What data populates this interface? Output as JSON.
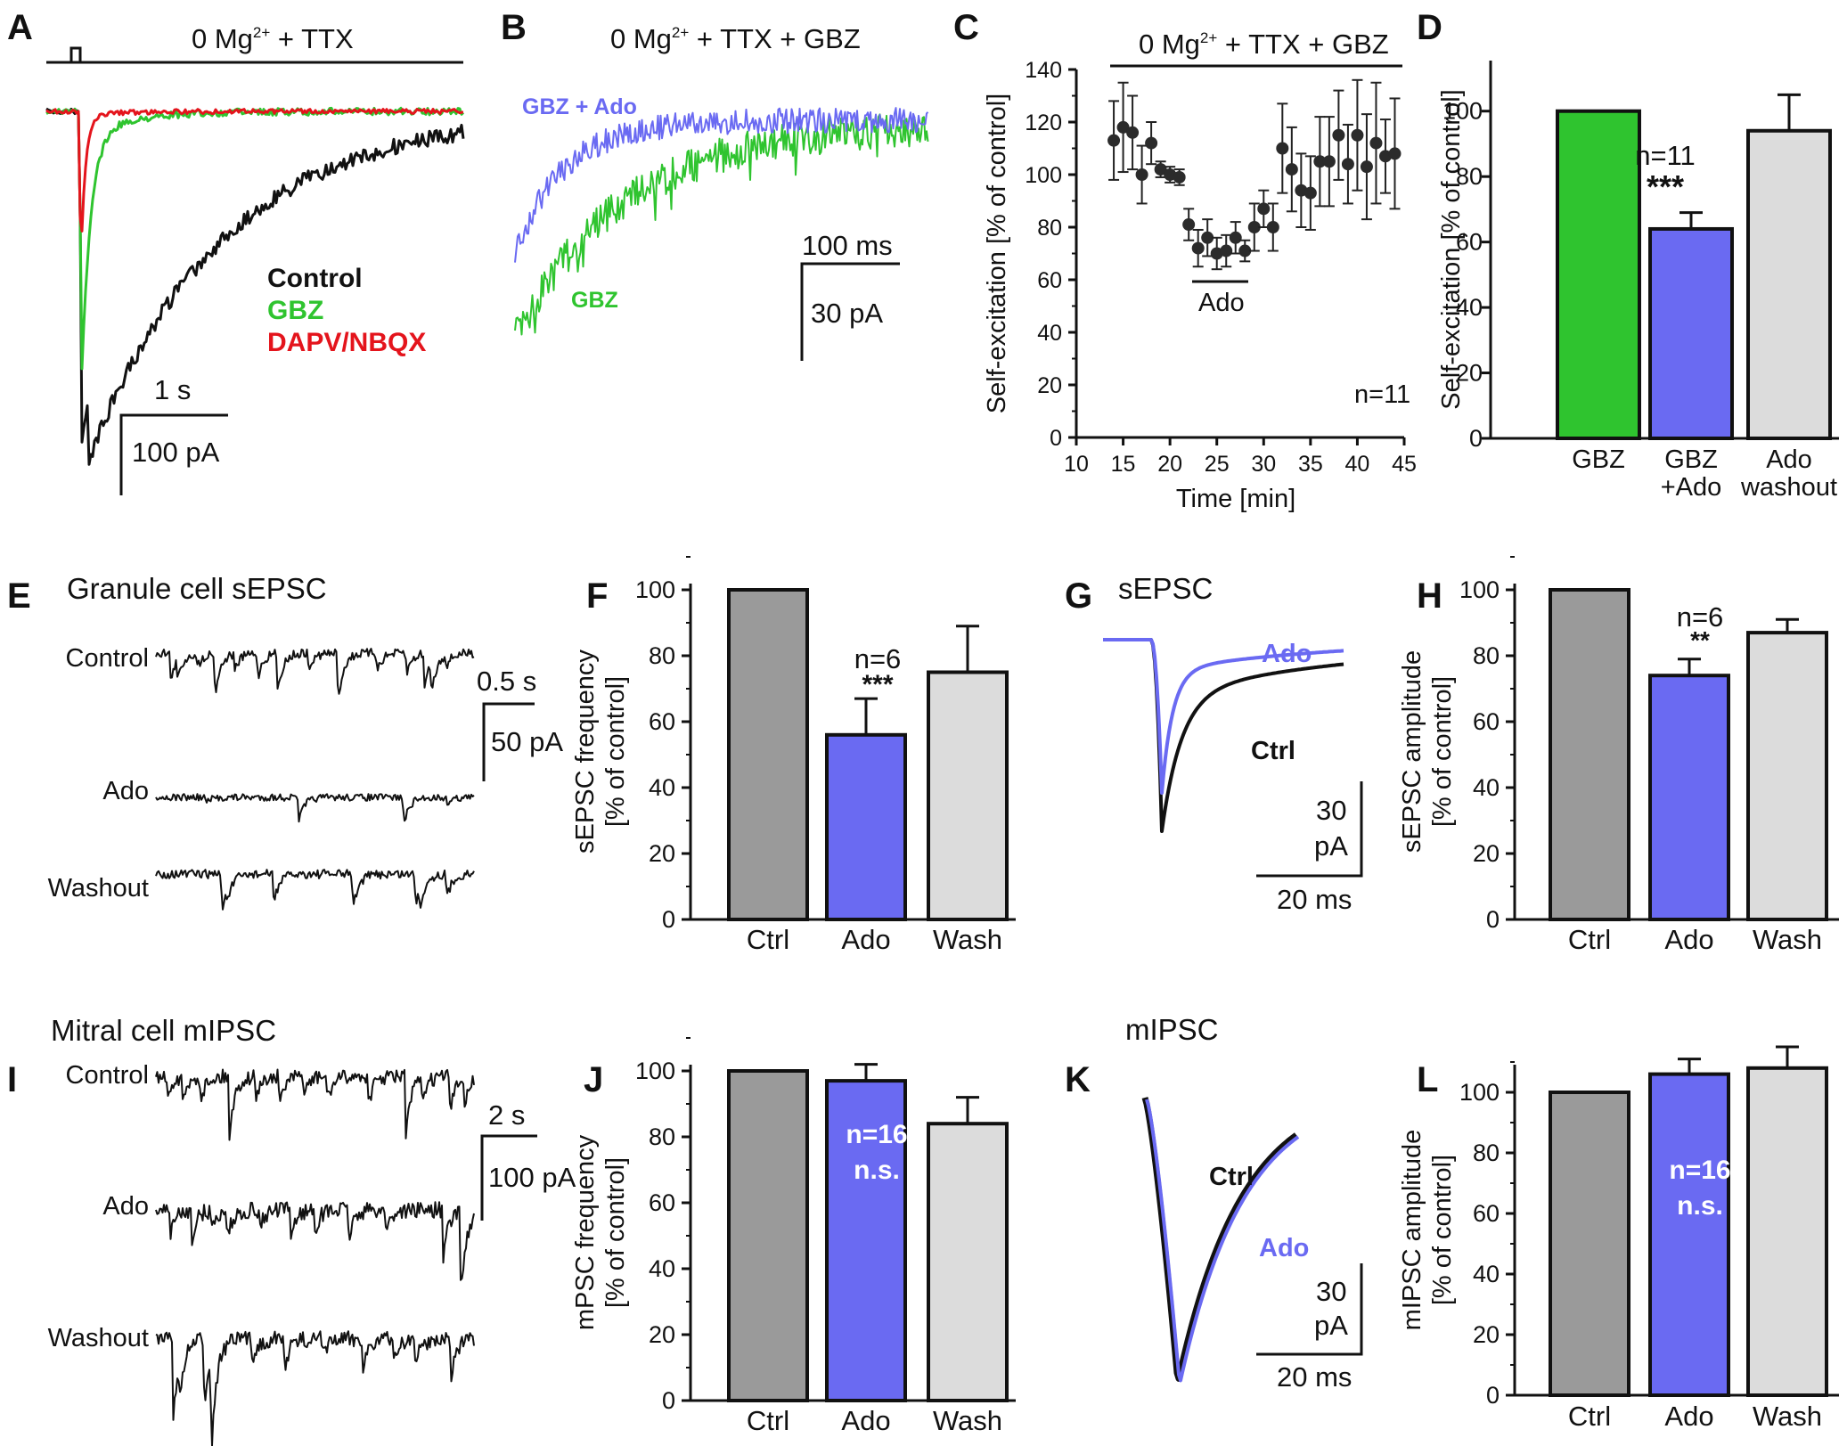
{
  "colors": {
    "control": "#111111",
    "gbz": "#2fc42f",
    "dapv": "#e4141c",
    "ado": "#6a6af2",
    "grey_dark": "#9a9a9a",
    "grey_light": "#dcdcdc"
  },
  "panels": {
    "A": {
      "letter": "A",
      "condition": "0 Mg",
      "sup": "2+",
      "condition_rest": " + TTX",
      "legend": [
        "Control",
        "GBZ",
        "DAPV/NBQX"
      ],
      "scale_time": "1 s",
      "scale_amp": "100 pA"
    },
    "B": {
      "letter": "B",
      "condition": "0 Mg",
      "sup": "2+",
      "condition_rest": " + TTX + GBZ",
      "label_ado": "GBZ + Ado",
      "label_gbz": "GBZ",
      "scale_time": "100 ms",
      "scale_amp": "30 pA"
    },
    "C": {
      "letter": "C",
      "condition": "0 Mg",
      "sup": "2+",
      "condition_rest": " + TTX + GBZ",
      "drug_bar": "Ado",
      "n": "n=11"
    },
    "D": {
      "letter": "D",
      "n": "n=11",
      "sig": "***"
    },
    "E": {
      "letter": "E",
      "title": "Granule cell sEPSC",
      "trace_labels": [
        "Control",
        "Ado",
        "Washout"
      ],
      "scale_time": "0.5 s",
      "scale_amp": "50 pA"
    },
    "F": {
      "letter": "F",
      "n": "n=6",
      "sig": "***"
    },
    "G": {
      "letter": "G",
      "title": "sEPSC",
      "label_ado": "Ado",
      "label_ctrl": "Ctrl",
      "scale_amp_1": "30",
      "scale_amp_2": "pA",
      "scale_time": "20 ms"
    },
    "H": {
      "letter": "H",
      "n": "n=6",
      "sig": "**"
    },
    "I": {
      "letter": "I",
      "title": "Mitral cell mIPSC",
      "trace_labels": [
        "Control",
        "Ado",
        "Washout"
      ],
      "scale_time": "2 s",
      "scale_amp": "100 pA"
    },
    "J": {
      "letter": "J",
      "n": "n=16",
      "sig": "n.s."
    },
    "K": {
      "letter": "K",
      "title": "mIPSC",
      "label_ctrl": "Ctrl",
      "label_ado": "Ado",
      "scale_amp_1": "30",
      "scale_amp_2": "pA",
      "scale_time": "20 ms"
    },
    "L": {
      "letter": "L",
      "n": "n=16",
      "sig": "n.s."
    }
  },
  "chart_data": [
    {
      "panel": "C",
      "type": "scatter",
      "title": "0 Mg2+ + TTX + GBZ",
      "xlabel": "Time [min]",
      "ylabel": "Self-excitation [% of control]",
      "xlim": [
        10,
        45
      ],
      "ylim": [
        0,
        140
      ],
      "xticks": [
        10,
        15,
        20,
        25,
        30,
        35,
        40,
        45
      ],
      "yticks": [
        0,
        20,
        40,
        60,
        80,
        100,
        120,
        140
      ],
      "x": [
        14,
        15,
        16,
        17,
        18,
        19,
        20,
        21,
        22,
        23,
        24,
        25,
        26,
        27,
        28,
        29,
        30,
        31,
        32,
        33,
        34,
        35,
        36,
        37,
        38,
        39,
        40,
        41,
        42,
        43,
        44
      ],
      "y": [
        113,
        118,
        116,
        100,
        112,
        102,
        100,
        99,
        81,
        72,
        76,
        70,
        71,
        76,
        71,
        80,
        87,
        80,
        110,
        102,
        94,
        93,
        105,
        105,
        115,
        104,
        115,
        103,
        112,
        107,
        108
      ],
      "err": [
        15,
        17,
        14,
        11,
        8,
        3,
        3,
        3,
        6,
        7,
        7,
        6,
        6,
        6,
        4,
        9,
        7,
        9,
        17,
        16,
        14,
        14,
        17,
        17,
        17,
        15,
        21,
        20,
        23,
        14,
        21
      ]
    },
    {
      "panel": "D",
      "type": "bar",
      "ylabel": "Self-excitation [% of control]",
      "ylim": [
        0,
        110
      ],
      "yticks": [
        0,
        20,
        40,
        60,
        80,
        100
      ],
      "categories": [
        [
          "GBZ"
        ],
        [
          "GBZ",
          "+Ado"
        ],
        [
          "Ado",
          "washout"
        ]
      ],
      "values": [
        100,
        64,
        94
      ],
      "errors": [
        0,
        5,
        11
      ],
      "colors": [
        "#2fc42f",
        "#6a6af2",
        "#dcdcdc"
      ]
    },
    {
      "panel": "F",
      "type": "bar",
      "ylabel": [
        "sEPSC frequency",
        "[% of control]"
      ],
      "ylim": [
        0,
        100
      ],
      "yticks": [
        0,
        20,
        40,
        60,
        80,
        100
      ],
      "categories": [
        [
          "Ctrl"
        ],
        [
          "Ado"
        ],
        [
          "Wash"
        ]
      ],
      "values": [
        100,
        56,
        75
      ],
      "errors": [
        0,
        11,
        14
      ],
      "colors": [
        "#9a9a9a",
        "#6a6af2",
        "#dcdcdc"
      ]
    },
    {
      "panel": "H",
      "type": "bar",
      "ylabel": [
        "sEPSC amplitude",
        "[% of control]"
      ],
      "ylim": [
        0,
        100
      ],
      "yticks": [
        0,
        20,
        40,
        60,
        80,
        100
      ],
      "categories": [
        [
          "Ctrl"
        ],
        [
          "Ado"
        ],
        [
          "Wash"
        ]
      ],
      "values": [
        100,
        74,
        87
      ],
      "errors": [
        0,
        5,
        4
      ],
      "colors": [
        "#9a9a9a",
        "#6a6af2",
        "#dcdcdc"
      ]
    },
    {
      "panel": "J",
      "type": "bar",
      "ylabel": [
        "mPSC frequency",
        "[% of control]"
      ],
      "ylim": [
        0,
        100
      ],
      "yticks": [
        0,
        20,
        40,
        60,
        80,
        100
      ],
      "categories": [
        [
          "Ctrl"
        ],
        [
          "Ado"
        ],
        [
          "Wash"
        ]
      ],
      "values": [
        100,
        97,
        84
      ],
      "errors": [
        0,
        5,
        8
      ],
      "colors": [
        "#9a9a9a",
        "#6a6af2",
        "#dcdcdc"
      ]
    },
    {
      "panel": "L",
      "type": "bar",
      "ylabel": [
        "mIPSC amplitude",
        "[% of control]"
      ],
      "ylim": [
        0,
        110
      ],
      "yticks": [
        0,
        20,
        40,
        60,
        80,
        100
      ],
      "categories": [
        [
          "Ctrl"
        ],
        [
          "Ado"
        ],
        [
          "Wash"
        ]
      ],
      "values": [
        100,
        106,
        108
      ],
      "errors": [
        0,
        5,
        7
      ],
      "colors": [
        "#9a9a9a",
        "#6a6af2",
        "#dcdcdc"
      ]
    }
  ]
}
